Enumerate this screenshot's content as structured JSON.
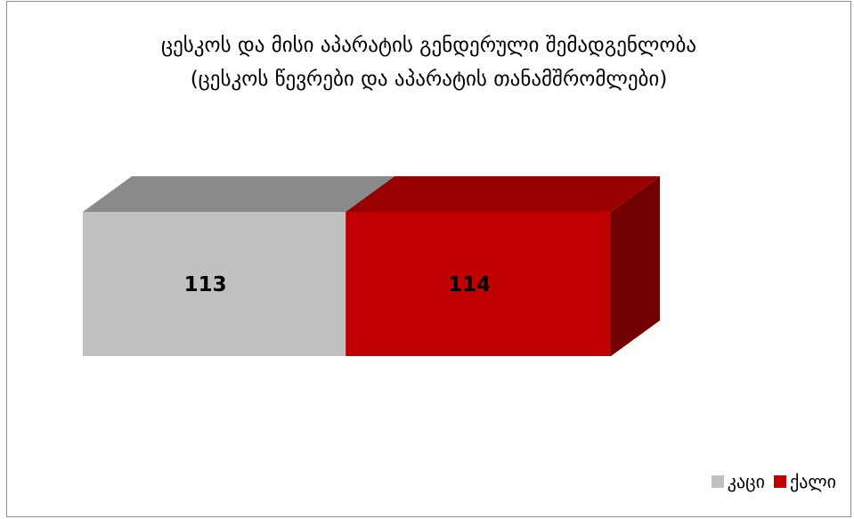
{
  "chart_data": {
    "type": "bar",
    "orientation": "horizontal",
    "stacked": true,
    "style": "3d",
    "title_lines": [
      "ცესკოს და მისი აპარატის გენდერული შემადგენლობა",
      "(ცესკოს წევრები და აპარატის თანამშრომლები)"
    ],
    "series": [
      {
        "name": "კაცი",
        "values": [
          113
        ],
        "color": "#c0c0c0",
        "label": "113"
      },
      {
        "name": "ქალი",
        "values": [
          114
        ],
        "color": "#c00000",
        "label": "114"
      }
    ],
    "legend_position": "bottom-right",
    "grid": false,
    "axes_visible": false
  }
}
